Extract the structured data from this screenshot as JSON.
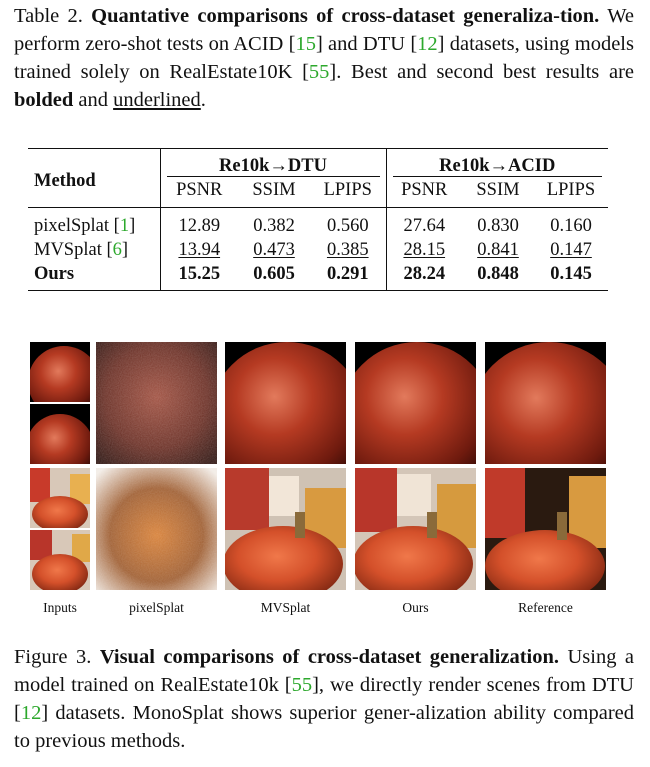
{
  "table_caption": {
    "label": "Table 2.",
    "title": "Quantative comparisons of cross-dataset generaliza-tion.",
    "text_1": "We perform zero-shot tests on ACID [",
    "ref_acid": "15",
    "text_2": "] and DTU [",
    "ref_dtu": "12",
    "text_3": "] datasets, using models trained solely on RealEstate10K [",
    "ref_re10k": "55",
    "text_4": "]. Best and second best results are",
    "bolded": "bolded",
    "text_5": "and",
    "underlined": "underlined",
    "text_6": "."
  },
  "table": {
    "method_header": "Method",
    "groups": [
      "Re10k→DTU",
      "Re10k→ACID"
    ],
    "metrics": [
      "PSNR",
      "SSIM",
      "LPIPS",
      "PSNR",
      "SSIM",
      "LPIPS"
    ],
    "rows": [
      {
        "method": "pixelSplat",
        "ref": "1",
        "values": [
          "12.89",
          "0.382",
          "0.560",
          "27.64",
          "0.830",
          "0.160"
        ]
      },
      {
        "method": "MVSplat",
        "ref": "6",
        "values": [
          "13.94",
          "0.473",
          "0.385",
          "28.15",
          "0.841",
          "0.147"
        ]
      },
      {
        "method": "Ours",
        "ref": "",
        "values": [
          "15.25",
          "0.605",
          "0.291",
          "28.24",
          "0.848",
          "0.145"
        ]
      }
    ]
  },
  "figure": {
    "column_labels": [
      "Inputs",
      "pixelSplat",
      "MVSplat",
      "Ours",
      "Reference"
    ]
  },
  "figure_caption": {
    "label": "Figure 3.",
    "title": "Visual comparisons of cross-dataset generalization.",
    "text_1": "Using a model trained on RealEstate10k [",
    "ref_re10k": "55",
    "text_2": "], we directly render scenes from DTU [",
    "ref_dtu": "12",
    "text_3": "] datasets. MonoSplat shows superior gener-alization ability compared to previous methods."
  }
}
